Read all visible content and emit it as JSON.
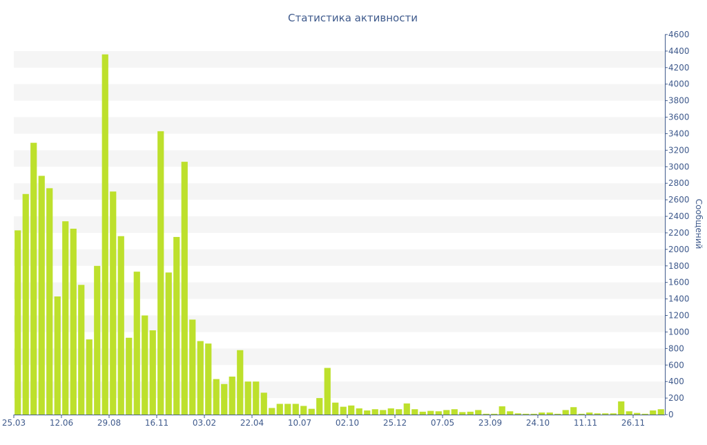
{
  "chart_data": {
    "type": "bar",
    "title": "Статистика активности",
    "xlabel": "",
    "ylabel": "Сообщений",
    "ylim": [
      0,
      4600
    ],
    "ytick_step": 200,
    "grid": true,
    "legend": "none",
    "x_tick_labels": [
      {
        "index": 0,
        "label": "25.03"
      },
      {
        "index": 6,
        "label": "12.06"
      },
      {
        "index": 12,
        "label": "29.08"
      },
      {
        "index": 18,
        "label": "16.11"
      },
      {
        "index": 24,
        "label": "03.02"
      },
      {
        "index": 30,
        "label": "22.04"
      },
      {
        "index": 36,
        "label": "10.07"
      },
      {
        "index": 42,
        "label": "02.10"
      },
      {
        "index": 48,
        "label": "25.12"
      },
      {
        "index": 54,
        "label": "07.05"
      },
      {
        "index": 60,
        "label": "23.09"
      },
      {
        "index": 66,
        "label": "24.10"
      },
      {
        "index": 72,
        "label": "11.11"
      },
      {
        "index": 78,
        "label": "26.11"
      }
    ],
    "values": [
      2230,
      2670,
      3290,
      2890,
      2740,
      1430,
      2340,
      2250,
      1570,
      910,
      1800,
      4360,
      2700,
      2160,
      930,
      1730,
      1200,
      1020,
      3430,
      1720,
      2150,
      3060,
      1150,
      890,
      860,
      430,
      370,
      460,
      780,
      400,
      400,
      265,
      80,
      130,
      130,
      130,
      105,
      70,
      200,
      565,
      145,
      95,
      110,
      75,
      50,
      65,
      55,
      75,
      65,
      135,
      65,
      35,
      45,
      40,
      55,
      65,
      30,
      35,
      55,
      10,
      10,
      100,
      40,
      15,
      10,
      10,
      25,
      25,
      10,
      55,
      90,
      10,
      25,
      15,
      15,
      15,
      160,
      40,
      20,
      10,
      50,
      65
    ],
    "colors": {
      "bar": "#bde02c",
      "text": "#3f5a8c",
      "grid_band": "#f5f5f5",
      "axis": "#3f5a8c"
    }
  }
}
